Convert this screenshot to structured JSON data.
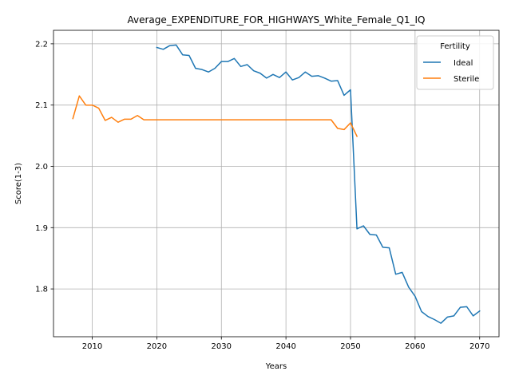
{
  "chart_data": {
    "type": "line",
    "title": "Average_EXPENDITURE_FOR_HIGHWAYS_White_Female_Q1_IQ",
    "xlabel": "Years",
    "ylabel": "Score(1-3)",
    "xlim": [
      2004,
      2073
    ],
    "ylim": [
      1.722,
      2.222
    ],
    "xticks": [
      2010,
      2020,
      2030,
      2040,
      2050,
      2060,
      2070
    ],
    "yticks": [
      1.8,
      1.9,
      2.0,
      2.1,
      2.2
    ],
    "xtick_labels": [
      "2010",
      "2020",
      "2030",
      "2040",
      "2050",
      "2060",
      "2070"
    ],
    "ytick_labels": [
      "1.8",
      "1.9",
      "2.0",
      "2.1",
      "2.2"
    ],
    "grid": true,
    "legend": {
      "title": "Fertility",
      "placement": "top-right"
    },
    "series": [
      {
        "name": "Ideal",
        "color": "#1f77b4",
        "x": [
          2020,
          2021,
          2022,
          2023,
          2024,
          2025,
          2026,
          2027,
          2028,
          2029,
          2030,
          2031,
          2032,
          2033,
          2034,
          2035,
          2036,
          2037,
          2038,
          2039,
          2040,
          2041,
          2042,
          2043,
          2044,
          2045,
          2046,
          2047,
          2048,
          2049,
          2050,
          2051,
          2052,
          2053,
          2054,
          2055,
          2056,
          2057,
          2058,
          2059,
          2060,
          2061,
          2062,
          2063,
          2064,
          2065,
          2066,
          2067,
          2068,
          2069,
          2070
        ],
        "y": [
          2.194,
          2.191,
          2.197,
          2.198,
          2.182,
          2.181,
          2.16,
          2.158,
          2.154,
          2.16,
          2.171,
          2.171,
          2.176,
          2.163,
          2.166,
          2.156,
          2.152,
          2.144,
          2.15,
          2.145,
          2.154,
          2.141,
          2.145,
          2.154,
          2.147,
          2.148,
          2.144,
          2.139,
          2.14,
          2.116,
          2.125,
          1.898,
          1.903,
          1.889,
          1.888,
          1.868,
          1.867,
          1.824,
          1.827,
          1.803,
          1.788,
          1.763,
          1.755,
          1.75,
          1.744,
          1.754,
          1.756,
          1.77,
          1.771,
          1.756,
          1.764
        ]
      },
      {
        "name": "Sterile",
        "color": "#ff7f0e",
        "x": [
          2007,
          2008,
          2009,
          2010,
          2011,
          2012,
          2013,
          2014,
          2015,
          2016,
          2017,
          2018,
          2019,
          2020,
          2021,
          2022,
          2023,
          2024,
          2025,
          2026,
          2027,
          2028,
          2029,
          2030,
          2031,
          2032,
          2033,
          2034,
          2035,
          2036,
          2037,
          2038,
          2039,
          2040,
          2041,
          2042,
          2043,
          2044,
          2045,
          2046,
          2047,
          2048,
          2049,
          2050,
          2051
        ],
        "y": [
          2.078,
          2.115,
          2.1,
          2.1,
          2.095,
          2.075,
          2.08,
          2.072,
          2.077,
          2.077,
          2.083,
          2.076,
          2.076,
          2.076,
          2.076,
          2.076,
          2.076,
          2.076,
          2.076,
          2.076,
          2.076,
          2.076,
          2.076,
          2.076,
          2.076,
          2.076,
          2.076,
          2.076,
          2.076,
          2.076,
          2.076,
          2.076,
          2.076,
          2.076,
          2.076,
          2.076,
          2.076,
          2.076,
          2.076,
          2.076,
          2.076,
          2.062,
          2.06,
          2.071,
          2.049
        ]
      }
    ]
  }
}
